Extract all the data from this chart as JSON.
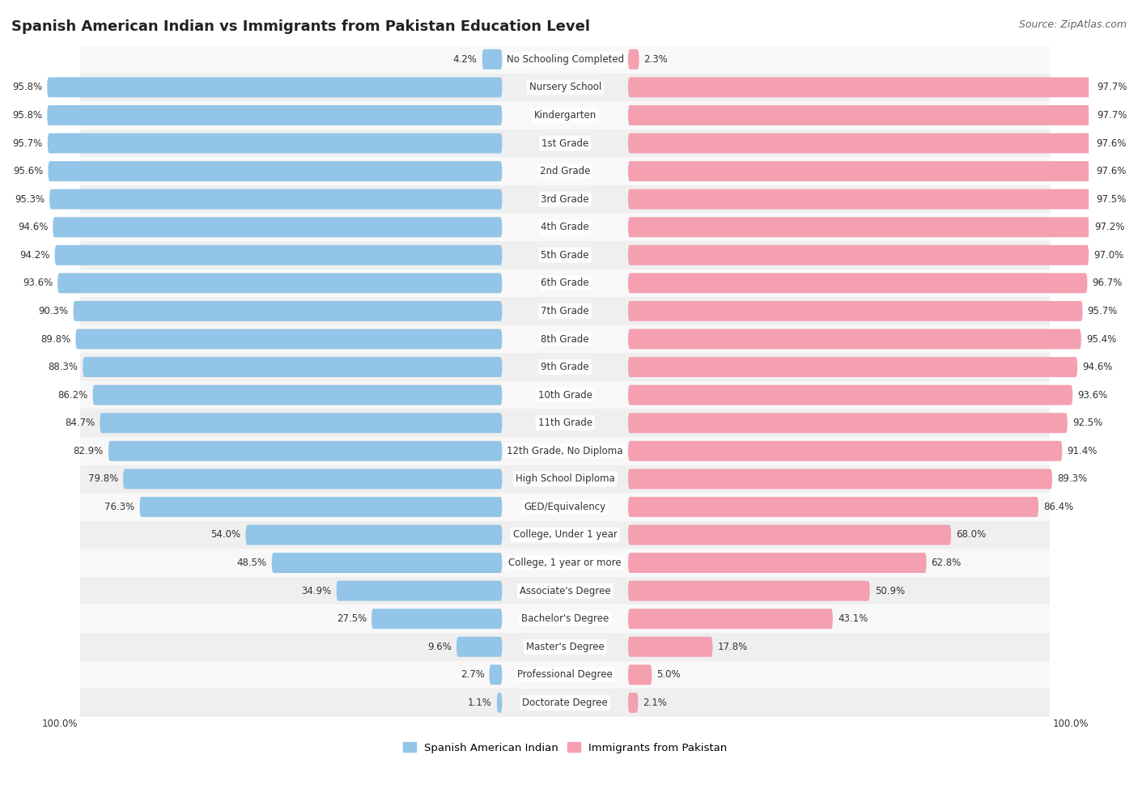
{
  "title": "Spanish American Indian vs Immigrants from Pakistan Education Level",
  "source": "Source: ZipAtlas.com",
  "categories": [
    "No Schooling Completed",
    "Nursery School",
    "Kindergarten",
    "1st Grade",
    "2nd Grade",
    "3rd Grade",
    "4th Grade",
    "5th Grade",
    "6th Grade",
    "7th Grade",
    "8th Grade",
    "9th Grade",
    "10th Grade",
    "11th Grade",
    "12th Grade, No Diploma",
    "High School Diploma",
    "GED/Equivalency",
    "College, Under 1 year",
    "College, 1 year or more",
    "Associate's Degree",
    "Bachelor's Degree",
    "Master's Degree",
    "Professional Degree",
    "Doctorate Degree"
  ],
  "spanish_values": [
    4.2,
    95.8,
    95.8,
    95.7,
    95.6,
    95.3,
    94.6,
    94.2,
    93.6,
    90.3,
    89.8,
    88.3,
    86.2,
    84.7,
    82.9,
    79.8,
    76.3,
    54.0,
    48.5,
    34.9,
    27.5,
    9.6,
    2.7,
    1.1
  ],
  "pakistan_values": [
    2.3,
    97.7,
    97.7,
    97.6,
    97.6,
    97.5,
    97.2,
    97.0,
    96.7,
    95.7,
    95.4,
    94.6,
    93.6,
    92.5,
    91.4,
    89.3,
    86.4,
    68.0,
    62.8,
    50.9,
    43.1,
    17.8,
    5.0,
    2.1
  ],
  "spanish_color": "#92C5E8",
  "pakistan_color": "#F4A0B0",
  "background_color": "#ffffff",
  "row_colors": [
    "#f8f8f8",
    "#efefef"
  ],
  "legend_spanish": "Spanish American Indian",
  "legend_pakistan": "Immigrants from Pakistan",
  "title_fontsize": 13,
  "label_fontsize": 8.5,
  "cat_fontsize": 8.5
}
